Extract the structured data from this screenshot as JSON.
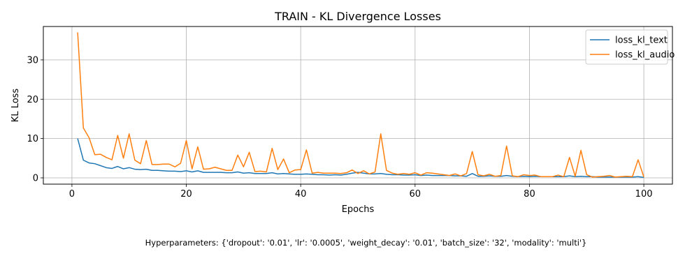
{
  "chart_data": {
    "type": "line",
    "title": "TRAIN - KL Divergence Losses",
    "xlabel": "Epochs",
    "ylabel": "KL Loss",
    "xlim": [
      -5,
      105
    ],
    "ylim": [
      -1.6,
      38.5
    ],
    "xticks": [
      0,
      20,
      40,
      60,
      80,
      100
    ],
    "yticks": [
      0,
      10,
      20,
      30
    ],
    "grid": true,
    "legend_position": "top-right",
    "x": [
      1,
      2,
      3,
      4,
      5,
      6,
      7,
      8,
      9,
      10,
      11,
      12,
      13,
      14,
      15,
      16,
      17,
      18,
      19,
      20,
      21,
      22,
      23,
      24,
      25,
      26,
      27,
      28,
      29,
      30,
      31,
      32,
      33,
      34,
      35,
      36,
      37,
      38,
      39,
      40,
      41,
      42,
      43,
      44,
      45,
      46,
      47,
      48,
      49,
      50,
      51,
      52,
      53,
      54,
      55,
      56,
      57,
      58,
      59,
      60,
      61,
      62,
      63,
      64,
      65,
      66,
      67,
      68,
      69,
      70,
      71,
      72,
      73,
      74,
      75,
      76,
      77,
      78,
      79,
      80,
      81,
      82,
      83,
      84,
      85,
      86,
      87,
      88,
      89,
      90,
      91,
      92,
      93,
      94,
      95,
      96,
      97,
      98,
      99,
      100
    ],
    "series": [
      {
        "name": "loss_kl_text",
        "color": "#1f77b4",
        "values": [
          10.0,
          4.5,
          3.8,
          3.6,
          3.1,
          2.6,
          2.4,
          2.9,
          2.3,
          2.6,
          2.2,
          2.1,
          2.2,
          1.9,
          1.9,
          1.8,
          1.7,
          1.7,
          1.6,
          1.8,
          1.5,
          1.8,
          1.4,
          1.4,
          1.4,
          1.4,
          1.3,
          1.3,
          1.5,
          1.2,
          1.3,
          1.1,
          1.1,
          1.1,
          1.3,
          1.0,
          1.1,
          1.0,
          0.9,
          0.9,
          1.0,
          0.9,
          0.8,
          0.8,
          0.7,
          0.8,
          0.7,
          0.9,
          1.2,
          1.4,
          1.2,
          1.0,
          1.0,
          1.1,
          0.9,
          0.8,
          0.8,
          0.7,
          0.7,
          0.8,
          0.6,
          0.7,
          0.6,
          0.6,
          0.6,
          0.6,
          0.5,
          0.5,
          0.4,
          1.1,
          0.4,
          0.4,
          0.5,
          0.4,
          0.4,
          0.6,
          0.4,
          0.3,
          0.4,
          0.3,
          0.4,
          0.3,
          0.3,
          0.3,
          0.3,
          0.3,
          0.5,
          0.3,
          0.4,
          0.3,
          0.3,
          0.2,
          0.2,
          0.2,
          0.2,
          0.2,
          0.2,
          0.2,
          0.3,
          0.1
        ]
      },
      {
        "name": "loss_kl_audio",
        "color": "#ff7f0e",
        "values": [
          37.0,
          12.7,
          10.2,
          5.9,
          6.0,
          5.2,
          4.6,
          10.8,
          5.0,
          11.2,
          4.5,
          3.6,
          9.5,
          3.4,
          3.4,
          3.5,
          3.5,
          2.8,
          3.7,
          9.5,
          2.3,
          7.9,
          2.2,
          2.3,
          2.7,
          2.3,
          1.9,
          1.9,
          5.8,
          2.8,
          6.5,
          1.6,
          1.7,
          1.5,
          7.5,
          2.1,
          4.8,
          1.3,
          2.0,
          2.1,
          7.1,
          1.2,
          1.4,
          1.2,
          1.2,
          1.2,
          1.1,
          1.3,
          2.0,
          1.1,
          1.8,
          1.0,
          1.5,
          11.2,
          1.9,
          1.2,
          0.9,
          1.1,
          0.9,
          1.3,
          0.7,
          1.3,
          1.2,
          1.0,
          0.8,
          0.6,
          1.0,
          0.5,
          1.1,
          6.7,
          0.8,
          0.5,
          0.9,
          0.4,
          0.6,
          8.1,
          0.5,
          0.3,
          0.8,
          0.6,
          0.7,
          0.3,
          0.3,
          0.3,
          0.7,
          0.3,
          5.2,
          0.4,
          7.0,
          0.8,
          0.2,
          0.3,
          0.4,
          0.6,
          0.2,
          0.3,
          0.4,
          0.3,
          4.6,
          0.2
        ]
      }
    ]
  },
  "footnote": "Hyperparameters: {'dropout': '0.01', 'lr': '0.0005', 'weight_decay': '0.01', 'batch_size': '32', 'modality': 'multi'}"
}
